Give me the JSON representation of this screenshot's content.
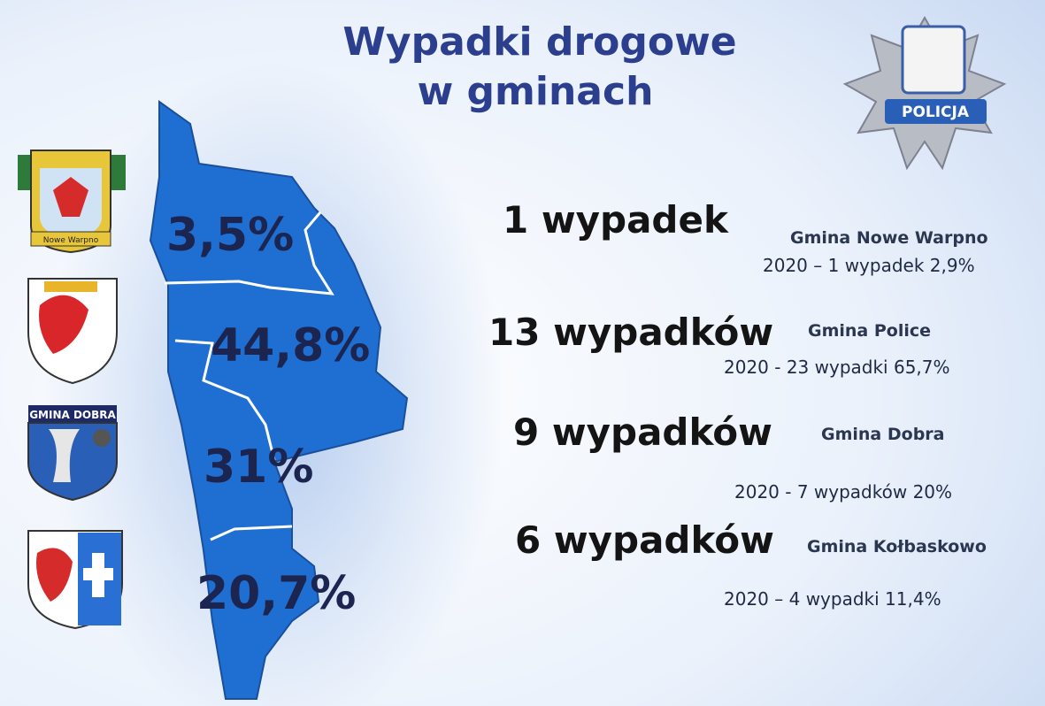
{
  "title": [
    "Wypadki drogowe",
    "w gminach"
  ],
  "badge": "POLICJA",
  "crest_labels": {
    "nowe_warpno": "Nowe Warpno",
    "dobra": "GMINA DOBRA"
  },
  "map_labels": [
    "3,5%",
    "44,8%",
    "31%",
    "20,7%"
  ],
  "entries": [
    {
      "count": "1 wypadek",
      "gmina": "Gmina Nowe Warpno",
      "previous": "2020 – 1 wypadek 2,9%"
    },
    {
      "count": "13 wypadków",
      "gmina": "Gmina Police",
      "previous": "2020 - 23 wypadki 65,7%"
    },
    {
      "count": "9 wypadków",
      "gmina": "Gmina Dobra",
      "previous": "2020 - 7 wypadków 20%"
    },
    {
      "count": "6 wypadków",
      "gmina": "Gmina Kołbaskowo",
      "previous": "2020 – 4 wypadki 11,4%"
    }
  ]
}
